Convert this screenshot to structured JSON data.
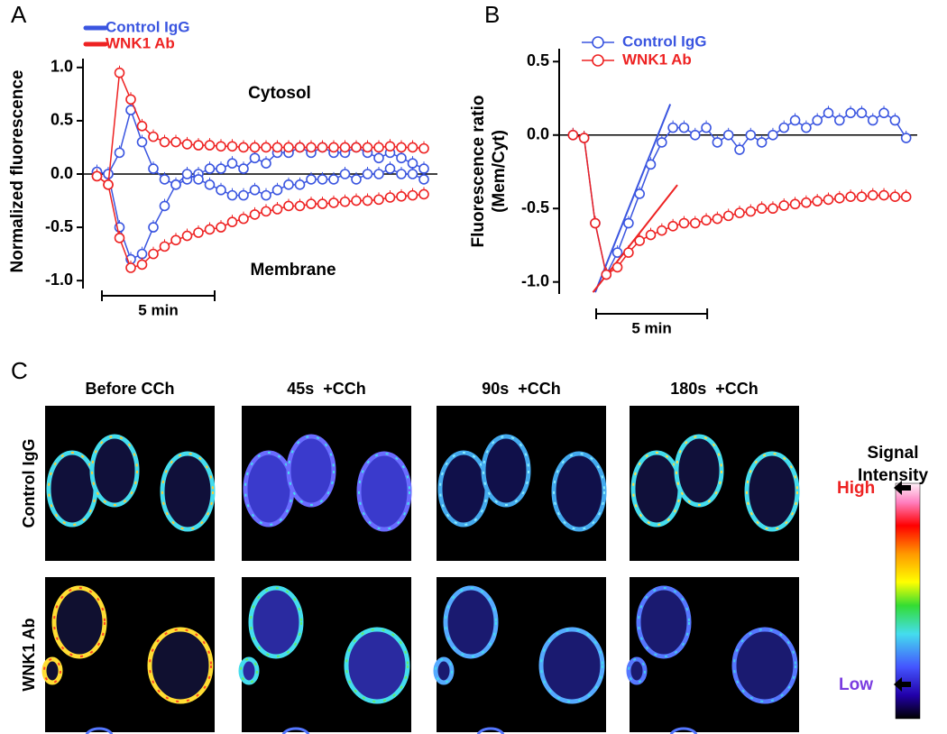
{
  "chart_data": [
    {
      "type": "line",
      "panel_label": "A",
      "y_label": "Normalized fluorescence",
      "annotations": [
        "Cytosol",
        "Membrane"
      ],
      "scale_bar": {
        "label": "5 min",
        "length": 5
      },
      "xlim": [
        0,
        15.6
      ],
      "ylim": [
        -1.1,
        1.1
      ],
      "yticks": [
        {
          "value": 1,
          "label": "1.0"
        },
        0.5,
        {
          "value": 0,
          "label": "0.0"
        },
        -0.5,
        {
          "value": -1,
          "label": "-1.0"
        }
      ],
      "x": [
        0.5,
        1,
        1.5,
        2,
        2.5,
        3,
        3.5,
        4,
        4.5,
        5,
        5.5,
        6,
        6.5,
        7,
        7.5,
        8,
        8.5,
        9,
        9.5,
        10,
        10.5,
        11,
        11.5,
        12,
        12.5,
        13,
        13.5,
        14,
        14.5,
        15
      ],
      "series": [
        {
          "name": "Control IgG",
          "color": "#3a55e0",
          "cytosol": [
            0.02,
            0.0,
            0.2,
            0.6,
            0.3,
            0.05,
            -0.05,
            -0.1,
            -0.05,
            0,
            0.05,
            0.05,
            0.1,
            0.05,
            0.15,
            0.1,
            0.2,
            0.2,
            0.25,
            0.2,
            0.25,
            0.2,
            0.2,
            0.25,
            0.2,
            0.15,
            0.2,
            0.15,
            0.1,
            0.05
          ],
          "membrane": [
            0.02,
            0.0,
            -0.5,
            -0.8,
            -0.75,
            -0.5,
            -0.3,
            -0.1,
            0.0,
            -0.05,
            -0.1,
            -0.15,
            -0.2,
            -0.2,
            -0.15,
            -0.2,
            -0.15,
            -0.1,
            -0.1,
            -0.05,
            -0.05,
            -0.05,
            0,
            -0.05,
            0,
            0,
            0.05,
            0,
            0,
            -0.05
          ]
        },
        {
          "name": "WNK1 Ab",
          "color": "#ee2222",
          "cytosol": [
            -0.02,
            -0.1,
            0.95,
            0.7,
            0.45,
            0.35,
            0.3,
            0.3,
            0.28,
            0.27,
            0.27,
            0.26,
            0.26,
            0.25,
            0.25,
            0.25,
            0.25,
            0.25,
            0.25,
            0.25,
            0.25,
            0.25,
            0.25,
            0.25,
            0.25,
            0.25,
            0.26,
            0.25,
            0.25,
            0.24
          ],
          "membrane": [
            -0.02,
            -0.1,
            -0.6,
            -0.88,
            -0.85,
            -0.75,
            -0.68,
            -0.62,
            -0.58,
            -0.55,
            -0.52,
            -0.5,
            -0.45,
            -0.42,
            -0.38,
            -0.35,
            -0.33,
            -0.3,
            -0.3,
            -0.28,
            -0.28,
            -0.27,
            -0.26,
            -0.25,
            -0.25,
            -0.24,
            -0.22,
            -0.21,
            -0.2,
            -0.19
          ]
        }
      ]
    },
    {
      "type": "line",
      "panel_label": "B",
      "y_label": [
        "Fluorescence ratio",
        "(Mem/Cyt)"
      ],
      "scale_bar": {
        "label": "5 min",
        "length": 5
      },
      "xlim": [
        0,
        16
      ],
      "ylim": [
        -1.1,
        0.6
      ],
      "yticks": [
        0.5,
        {
          "value": 0,
          "label": "0.0"
        },
        -0.5,
        {
          "value": -1,
          "label": "-1.0"
        }
      ],
      "x": [
        0.5,
        1,
        1.5,
        2,
        2.5,
        3,
        3.5,
        4,
        4.5,
        5,
        5.5,
        6,
        6.5,
        7,
        7.5,
        8,
        8.5,
        9,
        9.5,
        10,
        10.5,
        11,
        11.5,
        12,
        12.5,
        13,
        13.5,
        14,
        14.5,
        15,
        15.5
      ],
      "series": [
        {
          "name": "Control IgG",
          "color": "#3a55e0",
          "values": [
            0,
            -0.02,
            -0.6,
            -0.95,
            -0.8,
            -0.6,
            -0.4,
            -0.2,
            -0.05,
            0.05,
            0.05,
            0.0,
            0.05,
            -0.05,
            0.0,
            -0.1,
            0.0,
            -0.05,
            0.0,
            0.05,
            0.1,
            0.05,
            0.1,
            0.15,
            0.1,
            0.15,
            0.15,
            0.1,
            0.15,
            0.1,
            -0.02
          ],
          "fit": {
            "x": [
              1.5,
              4.88
            ],
            "y": [
              -1.07,
              0.21
            ]
          }
        },
        {
          "name": "WNK1 Ab",
          "color": "#ee2222",
          "values": [
            0,
            -0.02,
            -0.6,
            -0.95,
            -0.9,
            -0.8,
            -0.72,
            -0.68,
            -0.65,
            -0.62,
            -0.6,
            -0.6,
            -0.58,
            -0.57,
            -0.55,
            -0.53,
            -0.52,
            -0.5,
            -0.5,
            -0.48,
            -0.47,
            -0.46,
            -0.45,
            -0.44,
            -0.43,
            -0.42,
            -0.42,
            -0.41,
            -0.41,
            -0.42,
            -0.42
          ],
          "fit": {
            "x": [
              1.4,
              5.2
            ],
            "y": [
              -1.07,
              -0.34
            ]
          }
        }
      ]
    }
  ],
  "panel_c": {
    "panel_label": "C",
    "column_titles": [
      "Before CCh",
      "45s  +CCh",
      "90s  +CCh",
      "180s  +CCh"
    ],
    "row_labels": [
      "Control IgG",
      "WNK1 Ab"
    ],
    "colorbar": {
      "title": [
        "Signal",
        "Intensity"
      ],
      "high": "High",
      "low": "Low"
    }
  }
}
